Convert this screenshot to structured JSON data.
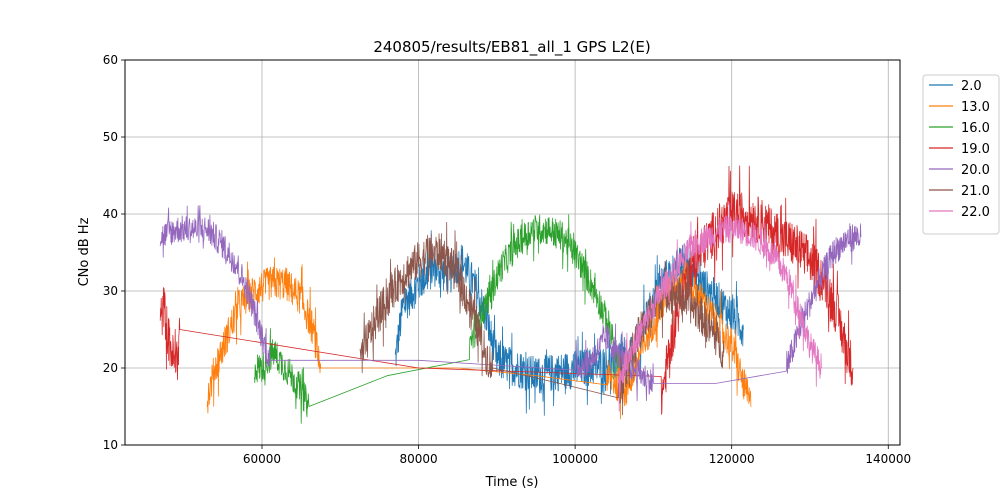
{
  "chart_data": {
    "type": "line",
    "title": "240805/results/EB81_all_1 GPS L2(E)",
    "xlabel": "Time (s)",
    "ylabel": "CNo dB Hz",
    "xlim": [
      42500,
      141500
    ],
    "ylim": [
      10,
      60
    ],
    "xticks": [
      60000,
      80000,
      100000,
      120000,
      140000
    ],
    "yticks": [
      10,
      20,
      30,
      40,
      50,
      60
    ],
    "xtick_labels": [
      "60000",
      "80000",
      "100000",
      "120000",
      "140000"
    ],
    "ytick_labels": [
      "10",
      "20",
      "30",
      "40",
      "50",
      "60"
    ],
    "grid": true,
    "legend_position": "right-top",
    "series": [
      {
        "name": "2.0",
        "color": "#1f77b4",
        "x": [
          77000,
          78000,
          80000,
          82000,
          84000,
          85500,
          87000,
          88500,
          90000,
          95000,
          101000,
          107000,
          109000,
          111000,
          113000,
          114500,
          116000,
          118000,
          120000,
          121500
        ],
        "y": [
          21,
          28,
          31,
          33,
          32,
          34,
          31,
          27,
          21,
          19,
          20,
          21,
          26,
          31,
          33,
          34,
          31,
          29,
          27,
          25
        ],
        "noise": 2.5
      },
      {
        "name": "13.0",
        "color": "#ff7f0e",
        "x": [
          53000,
          54000,
          55500,
          57000,
          59000,
          61000,
          63000,
          65000,
          66500,
          67500,
          75000,
          85000,
          95000,
          104000,
          106500,
          108000,
          110000,
          112000,
          114000,
          116000,
          118000,
          120000,
          121500,
          122500
        ],
        "y": [
          16,
          20,
          24,
          28,
          30,
          31,
          31,
          29,
          25,
          20,
          20,
          20,
          19,
          19,
          17,
          21,
          26,
          30,
          32,
          29,
          26,
          23,
          18,
          15
        ],
        "noise": 2.2
      },
      {
        "name": "16.0",
        "color": "#2ca02c",
        "x": [
          59000,
          60000,
          61500,
          63000,
          64500,
          66000,
          76000,
          86500,
          88500,
          90500,
          92500,
          94500,
          96500,
          98500,
          100500,
          102500,
          104500,
          105500
        ],
        "y": [
          20,
          20,
          22,
          20,
          18,
          15,
          19,
          23,
          28,
          33,
          36,
          38,
          38,
          37,
          34,
          30,
          25,
          20
        ],
        "noise": 2.0
      },
      {
        "name": "19.0",
        "color": "#d62728",
        "x": [
          47000,
          47500,
          48000,
          48500,
          49000,
          49500,
          80000,
          111000,
          112000,
          113000,
          114000,
          116000,
          118000,
          120000,
          122000,
          124000,
          126000,
          128000,
          130000,
          132000,
          133500,
          134500,
          135500
        ],
        "y": [
          26,
          28,
          24,
          22,
          20,
          25,
          20,
          16,
          22,
          27,
          31,
          35,
          38,
          40,
          40,
          39,
          37,
          36,
          34,
          31,
          27,
          23,
          20
        ],
        "noise": 3.0
      },
      {
        "name": "20.0",
        "color": "#9467bd",
        "x": [
          47000,
          49000,
          51000,
          53000,
          55000,
          57000,
          58500,
          60000,
          61000,
          80000,
          100000,
          102000,
          104000,
          106000,
          110000,
          118000,
          127000,
          129000,
          131000,
          133000,
          135000,
          136500
        ],
        "y": [
          37,
          38,
          38,
          38,
          36,
          33,
          29,
          24,
          21,
          21,
          20,
          21,
          24,
          21,
          18,
          18,
          20,
          26,
          31,
          35,
          37,
          37
        ],
        "noise": 1.8
      },
      {
        "name": "21.0",
        "color": "#8c564b",
        "x": [
          72500,
          74000,
          76000,
          78000,
          80000,
          81500,
          83000,
          85000,
          87000,
          88500,
          89500,
          98000,
          105500,
          106500,
          108000,
          110000,
          112000,
          114000,
          116000,
          118000,
          119000
        ],
        "y": [
          21,
          25,
          29,
          32,
          34,
          35,
          35,
          32,
          27,
          22,
          20,
          18,
          17,
          20,
          24,
          28,
          30,
          29,
          27,
          24,
          22
        ],
        "noise": 2.5
      },
      {
        "name": "22.0",
        "color": "#e377c2",
        "x": [
          105500,
          107000,
          109000,
          111000,
          113000,
          115000,
          117000,
          119000,
          121000,
          123000,
          125000,
          127000,
          128500,
          130000,
          131500
        ],
        "y": [
          18,
          22,
          26,
          30,
          33,
          36,
          37,
          38,
          38,
          37,
          35,
          32,
          28,
          23,
          20
        ],
        "noise": 1.8
      }
    ]
  }
}
